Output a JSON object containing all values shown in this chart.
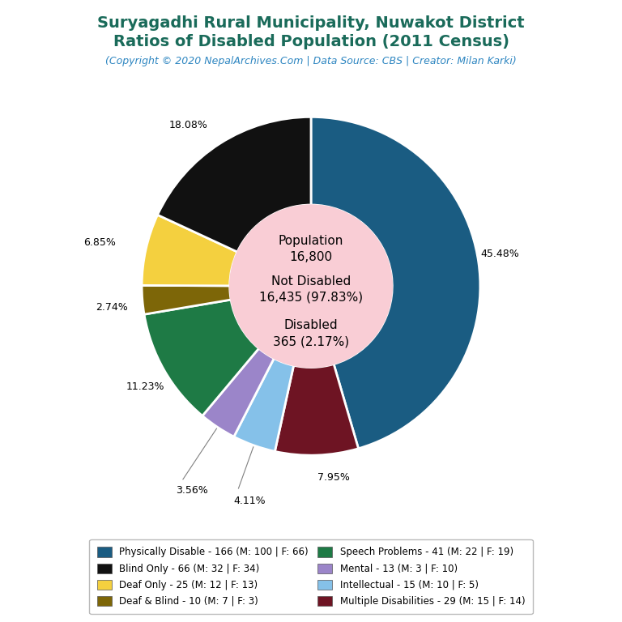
{
  "title_line1": "Suryagadhi Rural Municipality, Nuwakot District",
  "title_line2": "Ratios of Disabled Population (2011 Census)",
  "subtitle": "(Copyright © 2020 NepalArchives.Com | Data Source: CBS | Creator: Milan Karki)",
  "title_color": "#1a6b5a",
  "subtitle_color": "#2e86c1",
  "center_circle_color": "#f9cdd5",
  "slices_ordered": [
    {
      "label": "Physically Disable - 166 (M: 100 | F: 66)",
      "value": 166,
      "pct": 45.48,
      "color": "#1a5c82"
    },
    {
      "label": "Multiple Disabilities - 29 (M: 15 | F: 14)",
      "value": 29,
      "pct": 7.95,
      "color": "#6e1423"
    },
    {
      "label": "Intellectual - 15 (M: 10 | F: 5)",
      "value": 15,
      "pct": 4.11,
      "color": "#85c1e9"
    },
    {
      "label": "Mental - 13 (M: 3 | F: 10)",
      "value": 13,
      "pct": 3.56,
      "color": "#9b85c9"
    },
    {
      "label": "Speech Problems - 41 (M: 22 | F: 19)",
      "value": 41,
      "pct": 11.23,
      "color": "#1e7a45"
    },
    {
      "label": "Deaf & Blind - 10 (M: 7 | F: 3)",
      "value": 10,
      "pct": 2.74,
      "color": "#7d6608"
    },
    {
      "label": "Deaf Only - 25 (M: 12 | F: 13)",
      "value": 25,
      "pct": 6.85,
      "color": "#f4d03f"
    },
    {
      "label": "Blind Only - 66 (M: 32 | F: 34)",
      "value": 66,
      "pct": 18.08,
      "color": "#111111"
    }
  ],
  "legend_left": [
    {
      "label": "Physically Disable - 166 (M: 100 | F: 66)",
      "color": "#1a5c82"
    },
    {
      "label": "Deaf Only - 25 (M: 12 | F: 13)",
      "color": "#f4d03f"
    },
    {
      "label": "Speech Problems - 41 (M: 22 | F: 19)",
      "color": "#1e7a45"
    },
    {
      "label": "Intellectual - 15 (M: 10 | F: 5)",
      "color": "#85c1e9"
    }
  ],
  "legend_right": [
    {
      "label": "Blind Only - 66 (M: 32 | F: 34)",
      "color": "#111111"
    },
    {
      "label": "Deaf & Blind - 10 (M: 7 | F: 3)",
      "color": "#7d6608"
    },
    {
      "label": "Mental - 13 (M: 3 | F: 10)",
      "color": "#9b85c9"
    },
    {
      "label": "Multiple Disabilities - 29 (M: 15 | F: 14)",
      "color": "#6e1423"
    }
  ],
  "background_color": "#ffffff"
}
